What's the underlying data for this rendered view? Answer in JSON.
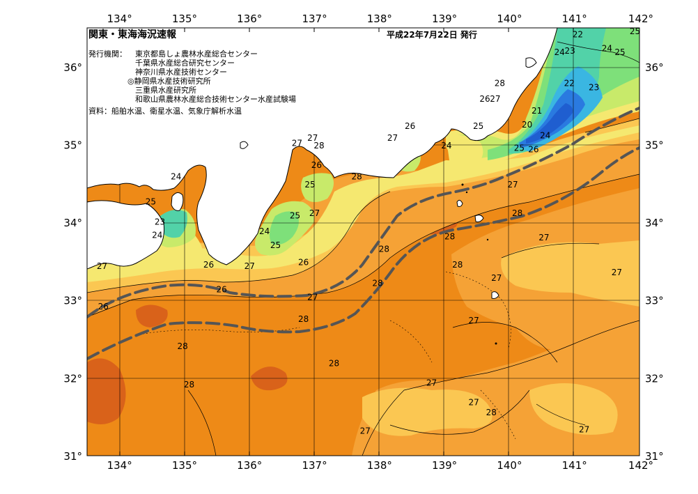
{
  "title": "関東・東海海況速報",
  "issue_date": "平成22年7月22日 発行",
  "issuers_label": "発行機関：",
  "issuers": [
    "東京都島しょ農林水産総合センター",
    "千葉県水産総合研究センター",
    "神奈川県水産技術センター",
    "◎静岡県水産技術研究所",
    "三重県水産研究所",
    "和歌山県農林水産総合技術センター水産試験場"
  ],
  "sources": "資料：船舶水温、衛星水温、気象庁解析水温",
  "lon_labels": [
    "134°",
    "135°",
    "136°",
    "137°",
    "138°",
    "139°",
    "140°",
    "141°",
    "142°"
  ],
  "lat_labels": [
    "36°",
    "35°",
    "34°",
    "33°",
    "32°",
    "31°"
  ],
  "isotherm_labels": [
    {
      "t": "22",
      "lon": 141.05,
      "lat": 36.38
    },
    {
      "t": "25",
      "lon": 141.93,
      "lat": 36.42
    },
    {
      "t": "24",
      "lon": 140.77,
      "lat": 36.15
    },
    {
      "t": "23",
      "lon": 140.93,
      "lat": 36.17
    },
    {
      "t": "24",
      "lon": 141.5,
      "lat": 36.2
    },
    {
      "t": "25",
      "lon": 141.7,
      "lat": 36.15
    },
    {
      "t": "28",
      "lon": 139.85,
      "lat": 35.75
    },
    {
      "t": "26",
      "lon": 139.62,
      "lat": 35.55
    },
    {
      "t": "27",
      "lon": 139.78,
      "lat": 35.55
    },
    {
      "t": "22",
      "lon": 140.92,
      "lat": 35.75
    },
    {
      "t": "23",
      "lon": 141.3,
      "lat": 35.7
    },
    {
      "t": "21",
      "lon": 140.42,
      "lat": 35.4
    },
    {
      "t": "25",
      "lon": 139.52,
      "lat": 35.2
    },
    {
      "t": "20",
      "lon": 140.27,
      "lat": 35.22
    },
    {
      "t": "24",
      "lon": 140.55,
      "lat": 35.08
    },
    {
      "t": "24",
      "lon": 139.03,
      "lat": 34.95
    },
    {
      "t": "25",
      "lon": 140.15,
      "lat": 34.92
    },
    {
      "t": "26",
      "lon": 140.37,
      "lat": 34.9
    },
    {
      "t": "26",
      "lon": 138.47,
      "lat": 35.2
    },
    {
      "t": "27",
      "lon": 138.2,
      "lat": 35.05
    },
    {
      "t": "27",
      "lon": 136.97,
      "lat": 35.05
    },
    {
      "t": "27",
      "lon": 136.73,
      "lat": 34.98
    },
    {
      "t": "28",
      "lon": 137.07,
      "lat": 34.95
    },
    {
      "t": "26",
      "lon": 137.03,
      "lat": 34.7
    },
    {
      "t": "25",
      "lon": 136.93,
      "lat": 34.45
    },
    {
      "t": "28",
      "lon": 137.65,
      "lat": 34.55
    },
    {
      "t": "27",
      "lon": 140.05,
      "lat": 34.45
    },
    {
      "t": "28",
      "lon": 140.12,
      "lat": 34.08
    },
    {
      "t": "25",
      "lon": 136.7,
      "lat": 34.05
    },
    {
      "t": "27",
      "lon": 137.0,
      "lat": 34.08
    },
    {
      "t": "24",
      "lon": 136.23,
      "lat": 33.85
    },
    {
      "t": "25",
      "lon": 136.4,
      "lat": 33.67
    },
    {
      "t": "28",
      "lon": 139.08,
      "lat": 33.78
    },
    {
      "t": "27",
      "lon": 140.53,
      "lat": 33.77
    },
    {
      "t": "28",
      "lon": 138.07,
      "lat": 33.62
    },
    {
      "t": "26",
      "lon": 136.83,
      "lat": 33.45
    },
    {
      "t": "28",
      "lon": 139.2,
      "lat": 33.42
    },
    {
      "t": "26",
      "lon": 135.37,
      "lat": 33.42
    },
    {
      "t": "27",
      "lon": 136.0,
      "lat": 33.4
    },
    {
      "t": "27",
      "lon": 141.65,
      "lat": 33.32
    },
    {
      "t": "27",
      "lon": 139.8,
      "lat": 33.25
    },
    {
      "t": "28",
      "lon": 137.97,
      "lat": 33.18
    },
    {
      "t": "26",
      "lon": 135.57,
      "lat": 33.1
    },
    {
      "t": "27",
      "lon": 136.97,
      "lat": 33.0
    },
    {
      "t": "25",
      "lon": 134.48,
      "lat": 34.23
    },
    {
      "t": "24",
      "lon": 134.87,
      "lat": 34.55
    },
    {
      "t": "23",
      "lon": 134.62,
      "lat": 33.97
    },
    {
      "t": "24",
      "lon": 134.58,
      "lat": 33.8
    },
    {
      "t": "27",
      "lon": 133.73,
      "lat": 33.4
    },
    {
      "t": "26",
      "lon": 133.75,
      "lat": 32.88
    },
    {
      "t": "27",
      "lon": 139.45,
      "lat": 32.7
    },
    {
      "t": "28",
      "lon": 136.83,
      "lat": 32.72
    },
    {
      "t": "28",
      "lon": 134.97,
      "lat": 32.37
    },
    {
      "t": "28",
      "lon": 137.3,
      "lat": 32.15
    },
    {
      "t": "28",
      "lon": 135.07,
      "lat": 31.88
    },
    {
      "t": "27",
      "lon": 138.8,
      "lat": 31.9
    },
    {
      "t": "27",
      "lon": 139.45,
      "lat": 31.65
    },
    {
      "t": "28",
      "lon": 139.72,
      "lat": 31.52
    },
    {
      "t": "27",
      "lon": 141.15,
      "lat": 31.3
    },
    {
      "t": "27",
      "lon": 137.78,
      "lat": 31.28
    }
  ],
  "map_extent": {
    "lon": [
      133.5,
      142.0
    ],
    "lat": [
      31.0,
      36.5
    ]
  },
  "colors": {
    "temp_28_plus": "#ee8a17",
    "temp_28_dark": "#d9621a",
    "temp_27": "#f5a236",
    "temp_26": "#fbc752",
    "temp_25": "#f5e870",
    "temp_24": "#c8ea6a",
    "temp_23": "#7ee07a",
    "temp_22": "#52d2a8",
    "temp_21": "#3ab6e2",
    "temp_20": "#2a7ae0",
    "land": "#ffffff",
    "kuroshio_axis": "#555555",
    "grid": "#000000"
  }
}
